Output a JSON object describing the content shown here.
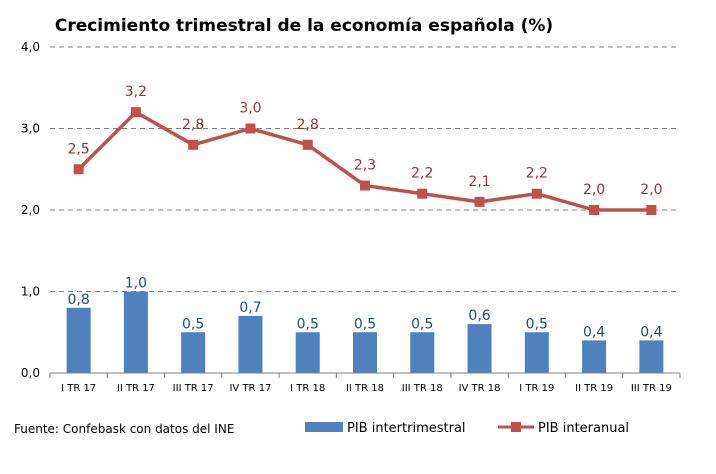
{
  "chart_data": {
    "type": "bar",
    "title": "Crecimiento trimestral de la economía española (%)",
    "categories": [
      "I TR 17",
      "II TR 17",
      "III TR 17",
      "IV TR 17",
      "I TR 18",
      "II TR 18",
      "III TR 18",
      "IV TR 18",
      "I TR 19",
      "II TR 19",
      "III TR 19"
    ],
    "series": [
      {
        "name": "PIB intertrimestral",
        "type": "bar",
        "color": "#4f81bd",
        "label_color": "#1f4e79",
        "values": [
          0.8,
          1.0,
          0.5,
          0.7,
          0.5,
          0.5,
          0.5,
          0.6,
          0.5,
          0.4,
          0.4
        ],
        "labels": [
          "0,8",
          "1,0",
          "0,5",
          "0,7",
          "0,5",
          "0,5",
          "0,5",
          "0,6",
          "0,5",
          "0,4",
          "0,4"
        ]
      },
      {
        "name": "PIB interanual",
        "type": "line",
        "color": "#c0504d",
        "label_color": "#953735",
        "values": [
          2.5,
          3.2,
          2.8,
          3.0,
          2.8,
          2.3,
          2.2,
          2.1,
          2.2,
          2.0,
          2.0
        ],
        "labels": [
          "2,5",
          "3,2",
          "2,8",
          "3,0",
          "2,8",
          "2,3",
          "2,2",
          "2,1",
          "2,2",
          "2,0",
          "2,0"
        ]
      }
    ],
    "ylim": [
      0,
      4
    ],
    "yticks": [
      0,
      1,
      2,
      3,
      4
    ],
    "ytick_labels": [
      "0,0",
      "1,0",
      "2,0",
      "3,0",
      "4,0"
    ],
    "gridlines": "dashed",
    "legend_position": "bottom-right",
    "xlabel": "",
    "ylabel": ""
  },
  "source": "Fuente: Confebask con datos del INE",
  "colors": {
    "grid": "#808080",
    "axis": "#808080"
  }
}
